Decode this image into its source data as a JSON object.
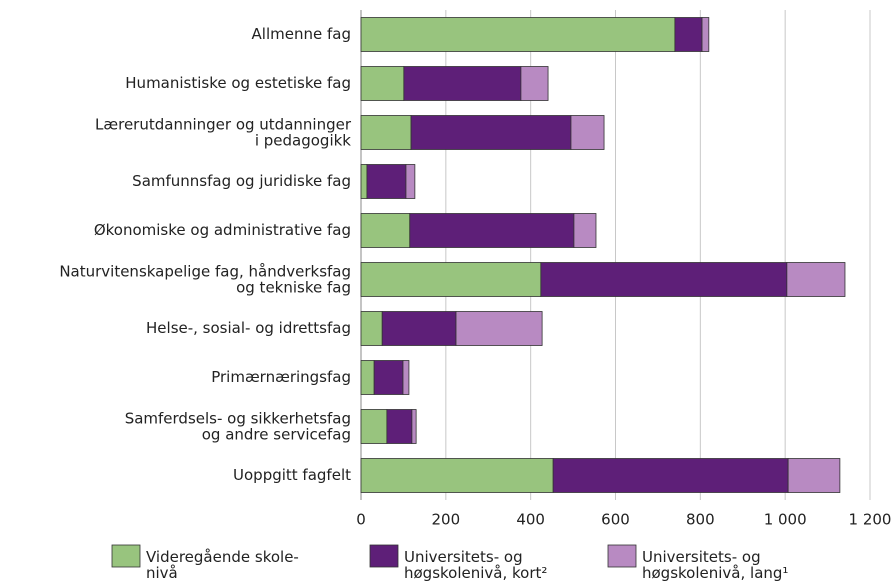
{
  "chart_data": {
    "type": "stacked_barh",
    "categories": [
      "Allmenne fag",
      "Humanistiske og estetiske fag",
      "Lærerutdanninger og utdanninger\ni pedagogikk",
      "Samfunnsfag og juridiske fag",
      "Økonomiske og administrative fag",
      "Naturvitenskapelige fag, håndverksfag\nog tekniske fag",
      "Helse-, sosial- og idrettsfag",
      "Primærnæringsfag",
      "Samferdsels- og sikkerhetsfag\nog andre servicefag",
      "Uoppgitt fagfelt"
    ],
    "series": [
      {
        "name": "Videregående skole-\nnivå",
        "color": "#98c47e",
        "values": [
          740,
          101,
          118,
          14,
          115,
          424,
          50,
          31,
          61,
          453
        ]
      },
      {
        "name": "Universitets- og\nhøgskolenivå, kort²",
        "color": "#5e1f78",
        "values": [
          64,
          276,
          377,
          92,
          387,
          580,
          174,
          68,
          59,
          554
        ]
      },
      {
        "name": "Universitets- og\nhøgskolenivå, lang¹",
        "color": "#b88ac2",
        "values": [
          16,
          64,
          78,
          21,
          52,
          137,
          203,
          14,
          10,
          122
        ]
      }
    ],
    "xlim": [
      0,
      1200
    ],
    "xticks": [
      0,
      200,
      400,
      600,
      800,
      {
        "value": 1000,
        "label": "1 000"
      },
      {
        "value": 1200,
        "label": "1 200"
      }
    ],
    "grid": true
  }
}
